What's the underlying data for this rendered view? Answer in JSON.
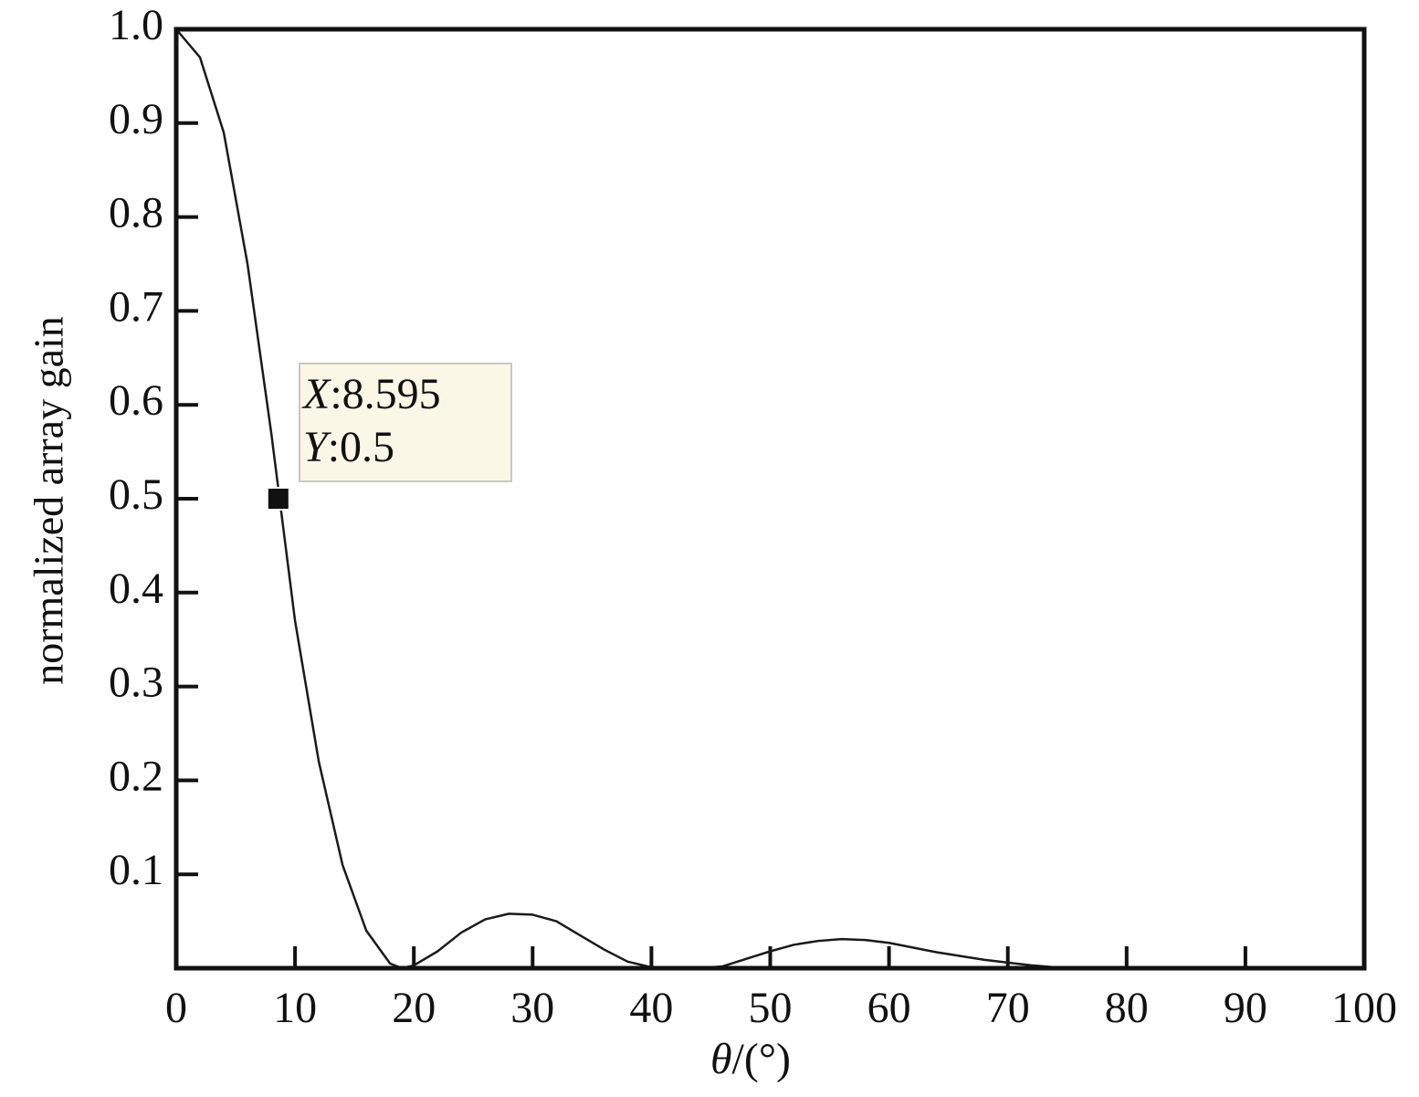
{
  "chart_data": {
    "type": "line",
    "x_label_symbol": "θ",
    "x_label_unit": "/(°)",
    "y_label": "normalized array gain",
    "x": [
      0,
      2,
      4,
      6,
      8,
      10,
      12,
      14,
      16,
      18,
      19,
      20,
      22,
      24,
      26,
      28,
      30,
      32,
      34,
      36,
      38,
      40,
      42,
      44,
      46,
      48,
      50,
      52,
      54,
      56,
      58,
      60,
      62,
      64,
      66,
      68,
      70,
      72,
      74,
      76,
      80,
      90,
      100
    ],
    "values": [
      1.0,
      0.97,
      0.89,
      0.75,
      0.57,
      0.37,
      0.22,
      0.11,
      0.04,
      0.005,
      0,
      0.003,
      0.018,
      0.038,
      0.052,
      0.058,
      0.057,
      0.05,
      0.035,
      0.02,
      0.007,
      0.001,
      0,
      0,
      0.002,
      0.01,
      0.018,
      0.025,
      0.029,
      0.031,
      0.03,
      0.027,
      0.022,
      0.017,
      0.013,
      0.009,
      0.006,
      0.003,
      0.001,
      0,
      0,
      0,
      0
    ],
    "color": "#1a1a1a",
    "xlim": [
      0,
      100
    ],
    "xticks": [
      0,
      10,
      20,
      30,
      40,
      50,
      60,
      70,
      80,
      90,
      100
    ],
    "ylim": [
      0,
      1
    ],
    "yticks": [
      0.1,
      0.2,
      0.3,
      0.4,
      0.5,
      0.6,
      0.7,
      0.8,
      0.9,
      {
        "value": 1,
        "label": "1.0"
      }
    ],
    "marker": {
      "x": 8.595,
      "y": 0.5,
      "x_name": "X",
      "y_name": "Y",
      "separator": ":"
    }
  }
}
